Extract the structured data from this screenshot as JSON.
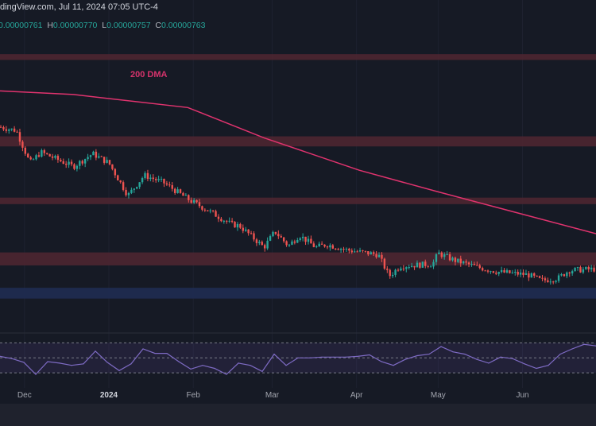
{
  "header": {
    "title": "dingView.com, Jul 11, 2024 07:05 UTC-4",
    "ohlc": {
      "open_label": "",
      "open": "0.00000761",
      "high_label": "H",
      "high": "0.00000770",
      "low_label": "L",
      "low": "0.00000757",
      "close_label": "C",
      "close": "0.00000763"
    }
  },
  "colors": {
    "background": "#161a25",
    "up": "#26a69a",
    "down": "#ef5350",
    "dma": "#e0336e",
    "resistance_zone": "#4c2631",
    "support_zone": "#1f2c52",
    "rsi": "#7e6bc4"
  },
  "chart_data": [
    {
      "type": "candlestick",
      "x_range": [
        "2023-11-22",
        "2024-06-28"
      ],
      "price_unit": "1e-6",
      "close_path": [
        [
          "2023-11-22",
          13.54
        ],
        [
          "2023-11-28",
          13.39
        ],
        [
          "2023-12-03",
          12.04
        ],
        [
          "2023-12-07",
          12.49
        ],
        [
          "2023-12-13",
          12.19
        ],
        [
          "2023-12-19",
          11.89
        ],
        [
          "2023-12-26",
          12.43
        ],
        [
          "2024-01-01",
          12.04
        ],
        [
          "2024-01-08",
          10.69
        ],
        [
          "2024-01-14",
          11.53
        ],
        [
          "2024-01-21",
          11.23
        ],
        [
          "2024-01-30",
          10.54
        ],
        [
          "2024-02-07",
          10.03
        ],
        [
          "2024-02-15",
          9.49
        ],
        [
          "2024-02-18",
          9.43
        ],
        [
          "2024-02-27",
          8.53
        ],
        [
          "2024-03-02",
          9.19
        ],
        [
          "2024-03-07",
          8.59
        ],
        [
          "2024-03-11",
          9.04
        ],
        [
          "2024-03-17",
          8.53
        ],
        [
          "2024-03-21",
          8.65
        ],
        [
          "2024-03-29",
          8.41
        ],
        [
          "2024-04-09",
          8.23
        ],
        [
          "2024-04-13",
          7.33
        ],
        [
          "2024-04-17",
          7.75
        ],
        [
          "2024-04-29",
          7.84
        ],
        [
          "2024-05-01",
          8.29
        ],
        [
          "2024-05-07",
          7.99
        ],
        [
          "2024-05-16",
          7.69
        ],
        [
          "2024-05-23",
          7.51
        ],
        [
          "2024-06-03",
          7.39
        ],
        [
          "2024-06-08",
          7.15
        ],
        [
          "2024-06-14",
          7.24
        ],
        [
          "2024-06-18",
          7.57
        ],
        [
          "2024-06-28",
          7.63
        ]
      ],
      "moving_average": {
        "label": "200 DMA",
        "points": [
          [
            "2023-11-22",
            15.04
          ],
          [
            "2023-12-19",
            14.89
          ],
          [
            "2024-01-30",
            14.35
          ],
          [
            "2024-02-27",
            13.09
          ],
          [
            "2024-04-02",
            11.74
          ],
          [
            "2024-05-01",
            10.84
          ],
          [
            "2024-05-31",
            9.94
          ],
          [
            "2024-06-28",
            9.1
          ]
        ]
      },
      "zones": [
        {
          "kind": "resistance",
          "from": 16.33,
          "to": 16.57
        },
        {
          "kind": "resistance",
          "from": 12.73,
          "to": 13.15
        },
        {
          "kind": "resistance",
          "from": 10.33,
          "to": 10.6
        },
        {
          "kind": "resistance",
          "from": 7.78,
          "to": 8.32
        },
        {
          "kind": "support",
          "from": 6.4,
          "to": 6.85
        }
      ],
      "y_range": [
        5.0,
        17.5
      ],
      "x_ticks": [
        {
          "label": "Dec",
          "date": "2023-12-01",
          "bold": false
        },
        {
          "label": "2024",
          "date": "2024-01-01",
          "bold": true
        },
        {
          "label": "Feb",
          "date": "2024-02-01",
          "bold": false
        },
        {
          "label": "Mar",
          "date": "2024-03-01",
          "bold": false
        },
        {
          "label": "Apr",
          "date": "2024-04-01",
          "bold": false
        },
        {
          "label": "May",
          "date": "2024-05-01",
          "bold": false
        },
        {
          "label": "Jun",
          "date": "2024-06-01",
          "bold": false
        }
      ]
    },
    {
      "type": "line",
      "indicator": "RSI",
      "x_range": [
        "2023-11-22",
        "2024-06-28"
      ],
      "levels": [
        70,
        50,
        30
      ],
      "y_range": [
        10,
        80
      ],
      "values": [
        52,
        49,
        44,
        28,
        45,
        43,
        40,
        42,
        59,
        44,
        33,
        42,
        62,
        56,
        56,
        45,
        35,
        40,
        36,
        28,
        43,
        40,
        32,
        55,
        40,
        50,
        50,
        51,
        51,
        51,
        52,
        54,
        45,
        40,
        48,
        53,
        55,
        65,
        58,
        55,
        48,
        43,
        51,
        49,
        42,
        36,
        40,
        55,
        62,
        68,
        66
      ]
    }
  ]
}
